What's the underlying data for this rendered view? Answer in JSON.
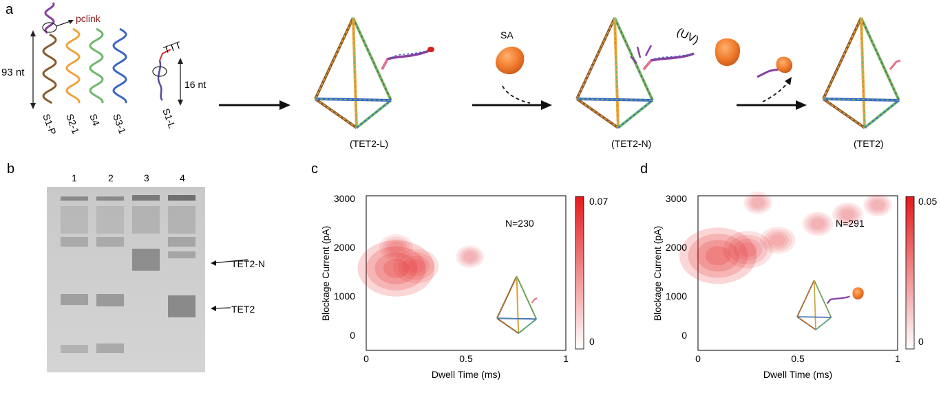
{
  "panel_a": {
    "label": "a",
    "strands": [
      "S1-P",
      "S2-1",
      "S4",
      "S3-1"
    ],
    "pclink": "pclink",
    "nt93": "93 nt",
    "linker_label": "S1-L",
    "nt16": "16 nt",
    "ttt": "TTT",
    "sa": "SA",
    "uv": "(UV)",
    "tet2l": "(TET2-L)",
    "tet2n": "(TET2-N)",
    "tet2": "(TET2)",
    "colors": {
      "brown": "#8a5a2b",
      "orange": "#f0a23a",
      "green": "#6cb86c",
      "blue": "#3b66c4",
      "purple": "#8a3fa0",
      "pink": "#e8708a",
      "sa": "#ef7a2a"
    }
  },
  "panel_b": {
    "label": "b",
    "lanes": [
      "1",
      "2",
      "3",
      "4"
    ],
    "arrow_top": "TET2-N",
    "arrow_bottom": "TET2"
  },
  "panel_c": {
    "label": "c",
    "xlabel": "Dwell Time (ms)",
    "ylabel": "Blockage Current (pA)",
    "xticks": [
      "0",
      "0.5",
      "1"
    ],
    "yticks": [
      "0",
      "1000",
      "2000",
      "3000"
    ],
    "count": "N=230",
    "cbar_max": "0.07",
    "cbar_min": "0"
  },
  "panel_d": {
    "label": "d",
    "xlabel": "Dwell Time (ms)",
    "ylabel": "Blockage Current (pA)",
    "xticks": [
      "0",
      "0.5",
      "1"
    ],
    "yticks": [
      "0",
      "1000",
      "2000",
      "3000"
    ],
    "count": "N=291",
    "cbar_max": "0.05",
    "cbar_min": "0"
  },
  "chart_data": [
    {
      "type": "heatmap",
      "xlabel": "Dwell Time (ms)",
      "ylabel": "Blockage Current (pA)",
      "xlim": [
        0,
        1
      ],
      "ylim": [
        -300,
        3000
      ],
      "annotation": "N=230",
      "colorbar": [
        0,
        0.07
      ],
      "hotspots": [
        {
          "x": 0.15,
          "y": 1450,
          "value": 0.07
        },
        {
          "x": 0.25,
          "y": 1500,
          "value": 0.03
        },
        {
          "x": 0.15,
          "y": 1900,
          "value": 0.015
        },
        {
          "x": 0.52,
          "y": 1700,
          "value": 0.008
        }
      ]
    },
    {
      "type": "heatmap",
      "xlabel": "Dwell Time (ms)",
      "ylabel": "Blockage Current (pA)",
      "xlim": [
        0,
        1
      ],
      "ylim": [
        -300,
        3000
      ],
      "annotation": "N=291",
      "colorbar": [
        0,
        0.05
      ],
      "hotspots": [
        {
          "x": 0.1,
          "y": 1720,
          "value": 0.05
        },
        {
          "x": 0.25,
          "y": 1850,
          "value": 0.025
        },
        {
          "x": 0.4,
          "y": 2050,
          "value": 0.012
        },
        {
          "x": 0.6,
          "y": 2400,
          "value": 0.008
        },
        {
          "x": 0.75,
          "y": 2600,
          "value": 0.008
        },
        {
          "x": 0.9,
          "y": 2800,
          "value": 0.006
        },
        {
          "x": 0.3,
          "y": 2850,
          "value": 0.006
        }
      ]
    }
  ]
}
